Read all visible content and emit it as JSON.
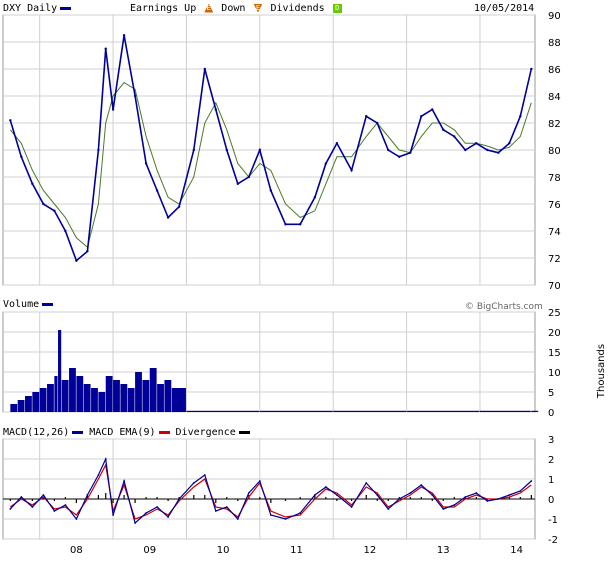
{
  "header": {
    "symbol_label": "DXY Daily",
    "earnings_label": "Earnings Up",
    "down_label": "Down",
    "dividends_label": "Dividends",
    "date": "10/05/2014",
    "up_badge": "E",
    "down_badge": "E",
    "div_badge": "D"
  },
  "volume_panel": {
    "label": "Volume",
    "watermark": "© BigCharts.com",
    "unit_label": "Thousands"
  },
  "macd_panel": {
    "label_macd": "MACD(12,26)",
    "label_ema": "MACD EMA(9)",
    "label_div": "Divergence"
  },
  "colors": {
    "price": "#000099",
    "moving_average": "#4a7a2a",
    "macd_ema": "#cc0000",
    "divergence": "#000000",
    "grid": "#d0d0d0",
    "up_badge": "#cc6600",
    "down_badge": "#cc6600",
    "div_badge": "#66cc00"
  },
  "chart_data": [
    {
      "type": "line",
      "title": "DXY Daily",
      "x_tick_labels": [
        "08",
        "09",
        "10",
        "11",
        "12",
        "13",
        "14"
      ],
      "ylim": [
        70,
        90
      ],
      "y_ticks": [
        70,
        72,
        74,
        76,
        78,
        80,
        82,
        84,
        86,
        88,
        90
      ],
      "x": [
        2007.6,
        2007.75,
        2007.9,
        2008.05,
        2008.2,
        2008.35,
        2008.5,
        2008.65,
        2008.8,
        2008.9,
        2009.0,
        2009.15,
        2009.3,
        2009.45,
        2009.6,
        2009.75,
        2009.9,
        2010.1,
        2010.25,
        2010.4,
        2010.55,
        2010.7,
        2010.85,
        2011.0,
        2011.15,
        2011.35,
        2011.55,
        2011.75,
        2011.9,
        2012.05,
        2012.25,
        2012.45,
        2012.6,
        2012.75,
        2012.9,
        2013.05,
        2013.2,
        2013.35,
        2013.5,
        2013.65,
        2013.8,
        2013.95,
        2014.1,
        2014.25,
        2014.4,
        2014.55,
        2014.7
      ],
      "series": [
        {
          "values": [
            82.2,
            79.5,
            77.5,
            76.0,
            75.5,
            74.0,
            71.8,
            72.5,
            80.0,
            87.5,
            83.0,
            88.5,
            84.0,
            79.0,
            77.0,
            75.0,
            75.8,
            80.0,
            86.0,
            83.0,
            80.0,
            77.5,
            78.0,
            80.0,
            77.0,
            74.5,
            74.5,
            76.5,
            79.0,
            80.5,
            78.5,
            82.5,
            82.0,
            80.0,
            79.5,
            79.8,
            82.5,
            83.0,
            81.5,
            81.0,
            80.0,
            80.5,
            80.0,
            79.8,
            80.5,
            82.5,
            86.0
          ]
        },
        {
          "values": [
            81.5,
            80.5,
            78.5,
            77.0,
            76.0,
            75.0,
            73.5,
            72.8,
            76.0,
            82.0,
            84.0,
            85.0,
            84.5,
            81.0,
            78.5,
            76.5,
            76.0,
            78.0,
            82.0,
            83.5,
            81.5,
            79.0,
            78.0,
            79.0,
            78.5,
            76.0,
            75.0,
            75.5,
            77.5,
            79.5,
            79.5,
            81.0,
            82.0,
            81.0,
            80.0,
            79.8,
            81.0,
            82.0,
            82.0,
            81.5,
            80.5,
            80.5,
            80.3,
            80.0,
            80.2,
            81.0,
            83.5
          ]
        }
      ]
    },
    {
      "type": "bar",
      "title": "Volume",
      "ylabel": "Thousands",
      "ylim": [
        0,
        25
      ],
      "y_ticks": [
        0,
        5,
        10,
        15,
        20,
        25
      ],
      "x": [
        2007.6,
        2007.7,
        2007.8,
        2007.9,
        2008.0,
        2008.1,
        2008.2,
        2008.25,
        2008.3,
        2008.4,
        2008.5,
        2008.6,
        2008.7,
        2008.8,
        2008.9,
        2009.0,
        2009.1,
        2009.2,
        2009.3,
        2009.4,
        2009.5,
        2009.6,
        2009.7,
        2009.8,
        2010,
        2011,
        2012,
        2013,
        2014,
        2014.7
      ],
      "values": [
        2,
        3,
        4,
        5,
        6,
        7,
        9,
        20.5,
        8,
        11,
        9,
        7,
        6,
        5,
        9,
        8,
        7,
        6,
        10,
        8,
        11,
        7,
        8,
        6,
        0.3,
        0.3,
        0.3,
        0.3,
        0.3,
        0.3
      ]
    },
    {
      "type": "line",
      "title": "MACD",
      "ylim": [
        -2,
        3
      ],
      "y_ticks": [
        -2,
        -1,
        0,
        1,
        2,
        3
      ],
      "x": [
        2007.6,
        2007.75,
        2007.9,
        2008.05,
        2008.2,
        2008.35,
        2008.5,
        2008.65,
        2008.8,
        2008.9,
        2009.0,
        2009.15,
        2009.3,
        2009.45,
        2009.6,
        2009.75,
        2009.9,
        2010.1,
        2010.25,
        2010.4,
        2010.55,
        2010.7,
        2010.85,
        2011.0,
        2011.15,
        2011.35,
        2011.55,
        2011.75,
        2011.9,
        2012.05,
        2012.25,
        2012.45,
        2012.6,
        2012.75,
        2012.9,
        2013.05,
        2013.2,
        2013.35,
        2013.5,
        2013.65,
        2013.8,
        2013.95,
        2014.1,
        2014.25,
        2014.4,
        2014.55,
        2014.7
      ],
      "series": [
        {
          "name": "MACD(12,26)",
          "values": [
            -0.5,
            0.1,
            -0.4,
            0.2,
            -0.6,
            -0.3,
            -1.0,
            0.2,
            1.2,
            2.0,
            -0.8,
            0.9,
            -1.2,
            -0.7,
            -0.4,
            -0.9,
            0.0,
            0.8,
            1.2,
            -0.6,
            -0.4,
            -1.0,
            0.3,
            0.9,
            -0.8,
            -1.0,
            -0.7,
            0.2,
            0.6,
            0.2,
            -0.4,
            0.8,
            0.2,
            -0.5,
            0.0,
            0.3,
            0.7,
            0.2,
            -0.5,
            -0.3,
            0.1,
            0.3,
            -0.1,
            0.0,
            0.2,
            0.4,
            0.9
          ]
        },
        {
          "name": "MACD EMA(9)",
          "values": [
            -0.4,
            0.0,
            -0.3,
            0.1,
            -0.5,
            -0.4,
            -0.8,
            0.0,
            1.0,
            1.7,
            -0.6,
            0.7,
            -1.0,
            -0.8,
            -0.5,
            -0.8,
            -0.1,
            0.6,
            1.0,
            -0.4,
            -0.5,
            -0.9,
            0.1,
            0.8,
            -0.6,
            -0.9,
            -0.8,
            0.0,
            0.5,
            0.3,
            -0.3,
            0.6,
            0.3,
            -0.4,
            -0.1,
            0.2,
            0.6,
            0.3,
            -0.4,
            -0.4,
            0.0,
            0.2,
            0.0,
            0.0,
            0.1,
            0.3,
            0.7
          ]
        }
      ]
    }
  ]
}
